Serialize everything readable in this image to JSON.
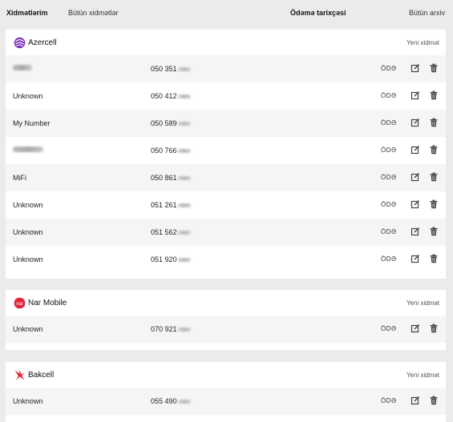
{
  "header": {
    "my_services": "Xidmətlərim",
    "all_services": "Bütün xidmətlər",
    "payment_date": "Ödəmə tarixçəsi",
    "all_archive": "Bütün arxiv"
  },
  "pay_label": "ÖDƏ",
  "groups": [
    {
      "name": "Azercell",
      "logo_color": "#7b2fb5",
      "new_service": "Yeni xidmət",
      "rows": [
        {
          "name": "",
          "number": "050 351"
        },
        {
          "name": "Unknown",
          "number": "050 412"
        },
        {
          "name": "My Number",
          "number": "050 589"
        },
        {
          "name": "",
          "number": "050 766"
        },
        {
          "name": "MiFi",
          "number": "050 861"
        },
        {
          "name": "Unknown",
          "number": "051 261"
        },
        {
          "name": "Unknown",
          "number": "051 562"
        },
        {
          "name": "Unknown",
          "number": "051 920"
        }
      ]
    },
    {
      "name": "Nar Mobile",
      "logo_color": "#e4253d",
      "new_service": "Yeni xidmət",
      "rows": [
        {
          "name": "Unknown",
          "number": "070 921"
        }
      ]
    },
    {
      "name": "Bakcell",
      "logo_color": "#e5202e",
      "new_service": "Yeni xidmət",
      "rows": [
        {
          "name": "Unknown",
          "number": "055 490"
        }
      ]
    }
  ]
}
